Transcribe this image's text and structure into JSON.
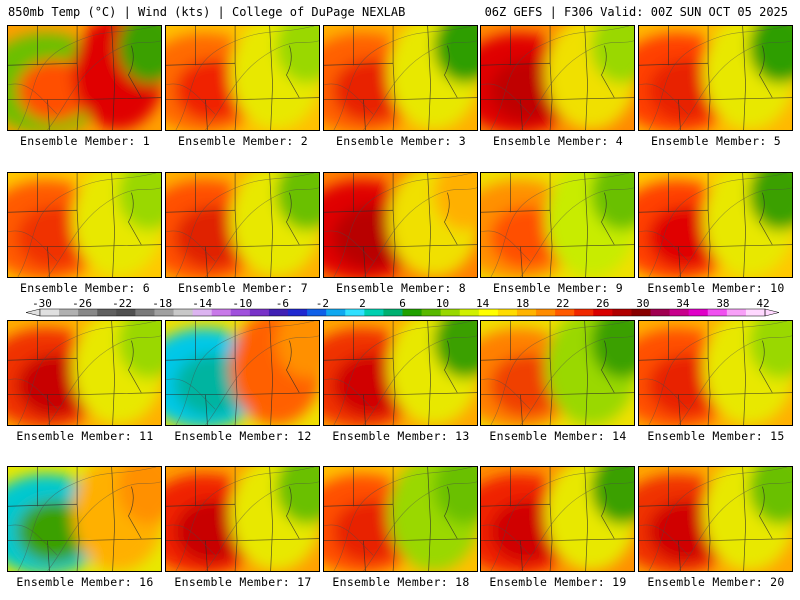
{
  "header": {
    "left": "850mb Temp (°C) | Wind (kts) | College of DuPage NEXLAB",
    "right": "06Z GEFS | F306 Valid: 00Z SUN OCT 05 2025"
  },
  "members": [
    {
      "label": "Ensemble Member: 1",
      "base": "#ff9e00",
      "blobs": [
        {
          "c": "#6ac000"
        },
        {
          "c": "#ff5000"
        },
        {
          "c": "#e00000"
        },
        {
          "c": "#3aa000"
        }
      ]
    },
    {
      "label": "Ensemble Member: 2",
      "base": "#ffc000",
      "blobs": [
        {
          "c": "#ff6a00"
        },
        {
          "c": "#f02000"
        },
        {
          "c": "#e8e800"
        },
        {
          "c": "#9ad800"
        }
      ]
    },
    {
      "label": "Ensemble Member: 3",
      "base": "#ffb000",
      "blobs": [
        {
          "c": "#ff6000"
        },
        {
          "c": "#e82000"
        },
        {
          "c": "#e8e800"
        },
        {
          "c": "#2e9e00"
        }
      ]
    },
    {
      "label": "Ensemble Member: 4",
      "base": "#ff8a00",
      "blobs": [
        {
          "c": "#e00000"
        },
        {
          "c": "#c00000"
        },
        {
          "c": "#f0e000"
        },
        {
          "c": "#9ad800"
        }
      ]
    },
    {
      "label": "Ensemble Member: 5",
      "base": "#ffb800",
      "blobs": [
        {
          "c": "#ff4000"
        },
        {
          "c": "#e82000"
        },
        {
          "c": "#e8e800"
        },
        {
          "c": "#2e9e00"
        }
      ]
    },
    {
      "label": "Ensemble Member: 6",
      "base": "#ffc800",
      "blobs": [
        {
          "c": "#ff5a00"
        },
        {
          "c": "#f03000"
        },
        {
          "c": "#e8e800"
        },
        {
          "c": "#9ad800"
        }
      ]
    },
    {
      "label": "Ensemble Member: 7",
      "base": "#ffb000",
      "blobs": [
        {
          "c": "#ff5000"
        },
        {
          "c": "#e02000"
        },
        {
          "c": "#e8e800"
        },
        {
          "c": "#6ac000"
        }
      ]
    },
    {
      "label": "Ensemble Member: 8",
      "base": "#ff8000",
      "blobs": [
        {
          "c": "#e00000"
        },
        {
          "c": "#b80000"
        },
        {
          "c": "#f0e000"
        },
        {
          "c": "#ffb000"
        }
      ]
    },
    {
      "label": "Ensemble Member: 9",
      "base": "#f0e000",
      "blobs": [
        {
          "c": "#ff9000"
        },
        {
          "c": "#ff5000"
        },
        {
          "c": "#c8ec00"
        },
        {
          "c": "#6ac000"
        }
      ]
    },
    {
      "label": "Ensemble Member: 10",
      "base": "#ffc800",
      "blobs": [
        {
          "c": "#ff4000"
        },
        {
          "c": "#e00000"
        },
        {
          "c": "#e8e800"
        },
        {
          "c": "#3aa000"
        }
      ]
    },
    {
      "label": "Ensemble Member: 11",
      "base": "#ffb000",
      "blobs": [
        {
          "c": "#f03000"
        },
        {
          "c": "#c80000"
        },
        {
          "c": "#e8e800"
        },
        {
          "c": "#9ad800"
        }
      ]
    },
    {
      "label": "Ensemble Member: 12",
      "base": "#f0e000",
      "blobs": [
        {
          "c": "#00c8e8"
        },
        {
          "c": "#00b4a0"
        },
        {
          "c": "#ff6000"
        },
        {
          "c": "#ff9000"
        }
      ]
    },
    {
      "label": "Ensemble Member: 13",
      "base": "#ffa800",
      "blobs": [
        {
          "c": "#f03000"
        },
        {
          "c": "#d00000"
        },
        {
          "c": "#e8e800"
        },
        {
          "c": "#3aa000"
        }
      ]
    },
    {
      "label": "Ensemble Member: 14",
      "base": "#f0e000",
      "blobs": [
        {
          "c": "#ff8000"
        },
        {
          "c": "#f04000"
        },
        {
          "c": "#9ad800"
        },
        {
          "c": "#3aa000"
        }
      ]
    },
    {
      "label": "Ensemble Member: 15",
      "base": "#ffb000",
      "blobs": [
        {
          "c": "#ff5000"
        },
        {
          "c": "#e82000"
        },
        {
          "c": "#e8e800"
        },
        {
          "c": "#9ad800"
        }
      ]
    },
    {
      "label": "Ensemble Member: 16",
      "base": "#e8e800",
      "blobs": [
        {
          "c": "#00c8d0"
        },
        {
          "c": "#3aa000"
        },
        {
          "c": "#ffb000"
        },
        {
          "c": "#ff9000"
        }
      ]
    },
    {
      "label": "Ensemble Member: 17",
      "base": "#ffa000",
      "blobs": [
        {
          "c": "#f02000"
        },
        {
          "c": "#c80000"
        },
        {
          "c": "#e8e800"
        },
        {
          "c": "#6ac000"
        }
      ]
    },
    {
      "label": "Ensemble Member: 18",
      "base": "#ffc000",
      "blobs": [
        {
          "c": "#ff5000"
        },
        {
          "c": "#e82000"
        },
        {
          "c": "#9ad800"
        },
        {
          "c": "#6ac000"
        }
      ]
    },
    {
      "label": "Ensemble Member: 19",
      "base": "#ff9000",
      "blobs": [
        {
          "c": "#f02000"
        },
        {
          "c": "#d00000"
        },
        {
          "c": "#e8e800"
        },
        {
          "c": "#3aa000"
        }
      ]
    },
    {
      "label": "Ensemble Member: 20",
      "base": "#ffa800",
      "blobs": [
        {
          "c": "#f03000"
        },
        {
          "c": "#d00000"
        },
        {
          "c": "#e8e800"
        },
        {
          "c": "#6ac000"
        }
      ]
    }
  ],
  "colorbar": {
    "ticks": [
      "-30",
      "-26",
      "-22",
      "-18",
      "-14",
      "-10",
      "-6",
      "-2",
      "2",
      "6",
      "10",
      "14",
      "18",
      "22",
      "26",
      "30",
      "34",
      "38",
      "42"
    ],
    "colors": [
      "#e0e0e0",
      "#b0b0b0",
      "#888888",
      "#606060",
      "#505050",
      "#7a7a7a",
      "#a0a0a0",
      "#c8c8c8",
      "#dcb4f0",
      "#c878e8",
      "#a050dc",
      "#7832c8",
      "#4020b4",
      "#2028d0",
      "#1060e8",
      "#10a8f0",
      "#30e0ff",
      "#00d0b0",
      "#00b070",
      "#20a000",
      "#58b800",
      "#98d800",
      "#d0f000",
      "#ffff00",
      "#ffdc00",
      "#ffb400",
      "#ff8c00",
      "#ff5a00",
      "#f02800",
      "#d80000",
      "#b00000",
      "#880000",
      "#a00050",
      "#c8008c",
      "#e000c8",
      "#f050f0",
      "#f8a0f8",
      "#ffd8ff"
    ]
  }
}
